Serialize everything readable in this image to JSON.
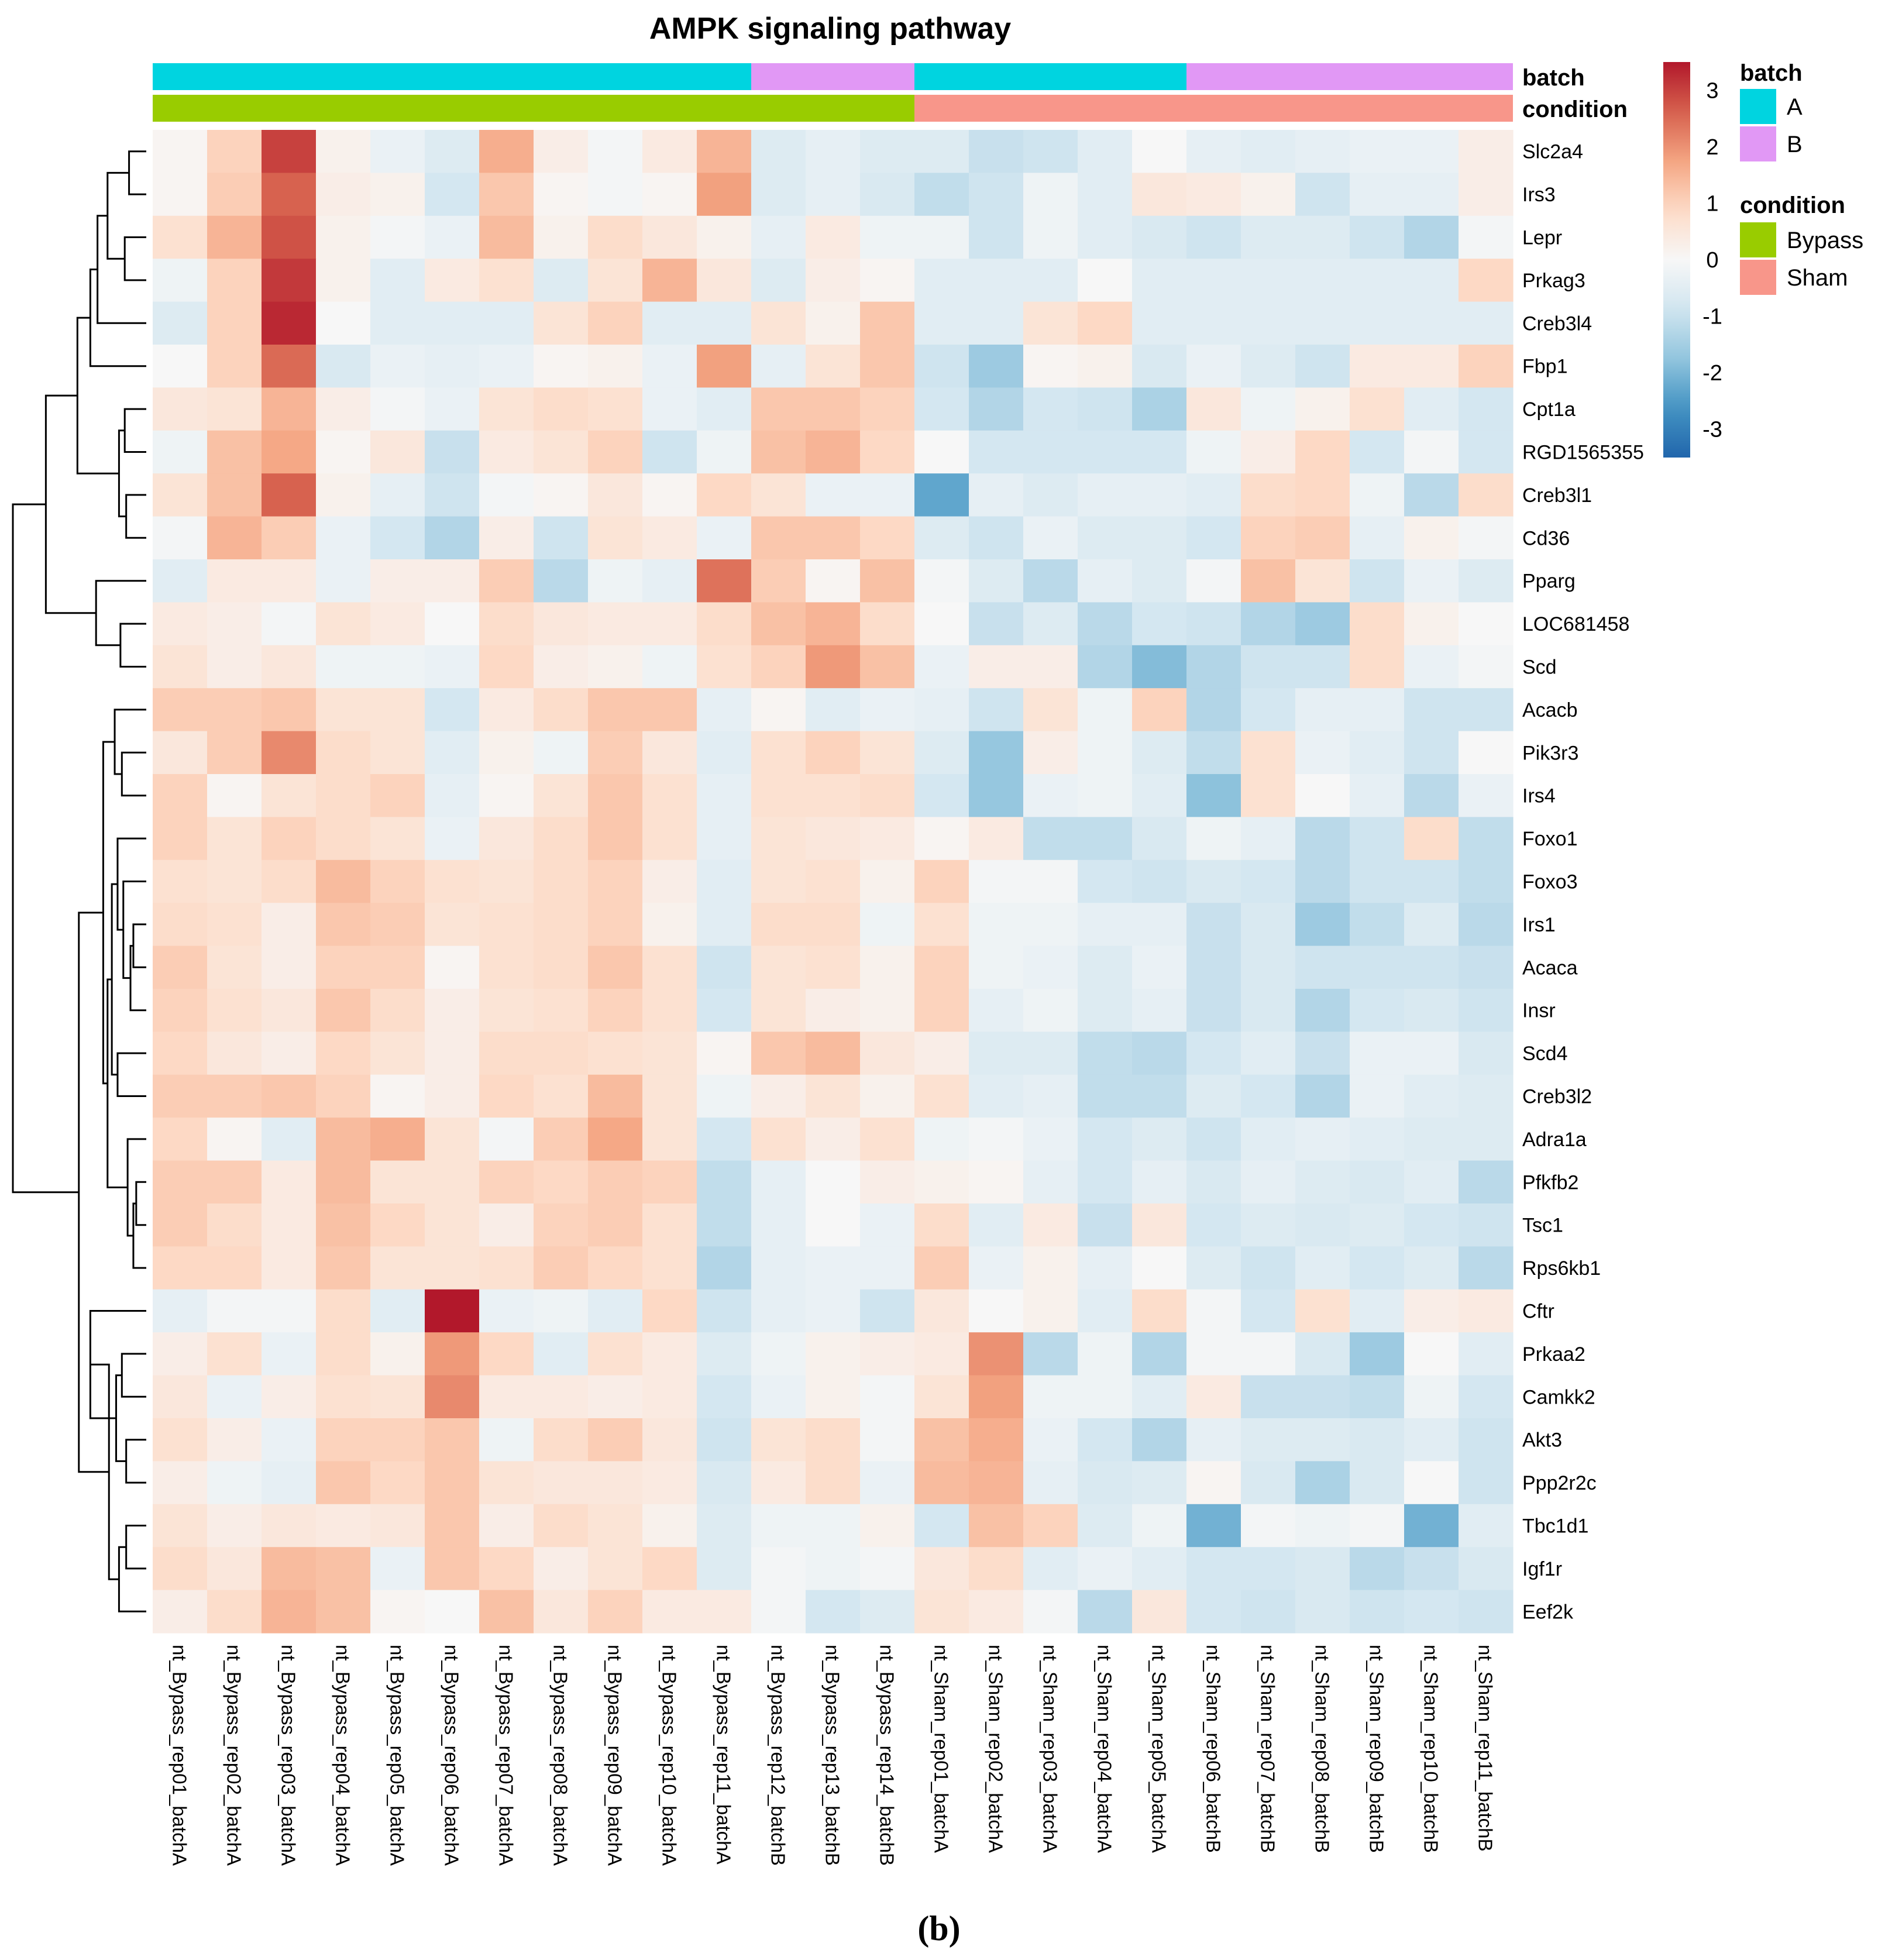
{
  "chart_data": {
    "type": "heatmap",
    "title": "AMPK signaling pathway",
    "panel_label": "(b)",
    "rows": [
      "Slc2a4",
      "Irs3",
      "Lepr",
      "Prkag3",
      "Creb3l4",
      "Fbp1",
      "Cpt1a",
      "RGD1565355",
      "Creb3l1",
      "Cd36",
      "Pparg",
      "LOC681458",
      "Scd",
      "Acacb",
      "Pik3r3",
      "Irs4",
      "Foxo1",
      "Foxo3",
      "Irs1",
      "Acaca",
      "Insr",
      "Scd4",
      "Creb3l2",
      "Adra1a",
      "Pfkfb2",
      "Tsc1",
      "Rps6kb1",
      "Cftr",
      "Prkaa2",
      "Camkk2",
      "Akt3",
      "Ppp2r2c",
      "Tbc1d1",
      "Igf1r",
      "Eef2k"
    ],
    "columns": [
      "nt_Bypass_rep01_batchA",
      "nt_Bypass_rep02_batchA",
      "nt_Bypass_rep03_batchA",
      "nt_Bypass_rep04_batchA",
      "nt_Bypass_rep05_batchA",
      "nt_Bypass_rep06_batchA",
      "nt_Bypass_rep07_batchA",
      "nt_Bypass_rep08_batchA",
      "nt_Bypass_rep09_batchA",
      "nt_Bypass_rep10_batchA",
      "nt_Bypass_rep11_batchA",
      "nt_Bypass_rep12_batchB",
      "nt_Bypass_rep13_batchB",
      "nt_Bypass_rep14_batchB",
      "nt_Sham_rep01_batchA",
      "nt_Sham_rep02_batchA",
      "nt_Sham_rep03_batchA",
      "nt_Sham_rep04_batchA",
      "nt_Sham_rep05_batchA",
      "nt_Sham_rep06_batchB",
      "nt_Sham_rep07_batchB",
      "nt_Sham_rep08_batchB",
      "nt_Sham_rep09_batchB",
      "nt_Sham_rep10_batchB",
      "nt_Sham_rep11_batchB"
    ],
    "values": [
      [
        0.1,
        1.0,
        3.0,
        0.2,
        -0.3,
        -0.6,
        1.6,
        0.3,
        -0.1,
        0.4,
        1.5,
        -0.6,
        -0.4,
        -0.6,
        -0.6,
        -1.0,
        -0.9,
        -0.5,
        0.0,
        -0.4,
        -0.5,
        -0.4,
        -0.3,
        -0.3,
        0.3
      ],
      [
        0.1,
        1.1,
        2.6,
        0.3,
        0.2,
        -0.8,
        1.2,
        0.1,
        -0.1,
        0.1,
        1.8,
        -0.6,
        -0.4,
        -0.7,
        -1.1,
        -0.9,
        -0.2,
        -0.5,
        0.5,
        0.4,
        0.2,
        -0.9,
        -0.4,
        -0.4,
        0.3
      ],
      [
        0.7,
        1.5,
        2.8,
        0.2,
        -0.1,
        -0.3,
        1.4,
        0.2,
        0.8,
        0.5,
        0.2,
        -0.4,
        0.4,
        -0.2,
        -0.2,
        -0.9,
        -0.2,
        -0.5,
        -0.7,
        -0.9,
        -0.6,
        -0.6,
        -0.9,
        -1.3,
        -0.1
      ],
      [
        -0.2,
        1.0,
        3.1,
        0.2,
        -0.5,
        0.4,
        0.7,
        -0.6,
        0.6,
        1.5,
        0.5,
        -0.6,
        0.3,
        0.1,
        -0.5,
        -0.5,
        -0.5,
        0.0,
        -0.5,
        -0.5,
        -0.5,
        -0.5,
        -0.5,
        -0.5,
        0.9
      ],
      [
        -0.6,
        1.0,
        3.3,
        0.0,
        -0.5,
        -0.5,
        -0.5,
        0.6,
        1.0,
        -0.5,
        -0.5,
        0.6,
        0.2,
        1.2,
        -0.5,
        -0.5,
        0.6,
        0.9,
        -0.5,
        -0.5,
        -0.5,
        -0.5,
        -0.5,
        -0.5,
        -0.5
      ],
      [
        0.0,
        1.0,
        2.5,
        -0.7,
        -0.3,
        -0.4,
        -0.3,
        0.1,
        0.2,
        -0.3,
        1.8,
        -0.4,
        0.6,
        1.2,
        -0.9,
        -1.6,
        0.1,
        0.2,
        -0.7,
        -0.3,
        -0.6,
        -0.9,
        0.4,
        0.4,
        1.0
      ],
      [
        0.5,
        0.6,
        1.5,
        0.3,
        -0.1,
        -0.3,
        0.6,
        0.8,
        0.7,
        -0.3,
        -0.5,
        1.2,
        1.2,
        1.0,
        -0.8,
        -1.3,
        -0.8,
        -0.9,
        -1.4,
        0.5,
        -0.2,
        0.2,
        0.7,
        -0.5,
        -0.8
      ],
      [
        -0.2,
        1.3,
        1.7,
        0.1,
        0.5,
        -1.0,
        0.4,
        0.6,
        1.0,
        -0.9,
        -0.2,
        1.3,
        1.5,
        0.9,
        0.0,
        -0.8,
        -0.8,
        -0.8,
        -0.8,
        -0.2,
        0.3,
        0.9,
        -0.8,
        -0.1,
        -0.8
      ],
      [
        0.6,
        1.3,
        2.6,
        0.2,
        -0.4,
        -0.9,
        -0.1,
        0.1,
        0.5,
        0.1,
        0.9,
        0.6,
        -0.3,
        -0.3,
        -2.3,
        -0.4,
        -0.6,
        -0.4,
        -0.4,
        -0.5,
        0.8,
        0.9,
        -0.2,
        -1.2,
        0.8
      ],
      [
        -0.1,
        1.5,
        1.1,
        -0.3,
        -0.8,
        -1.3,
        0.3,
        -0.9,
        0.6,
        0.4,
        -0.3,
        1.2,
        1.2,
        0.9,
        -0.6,
        -0.9,
        -0.3,
        -0.6,
        -0.6,
        -0.8,
        1.0,
        1.1,
        -0.4,
        0.2,
        -0.1
      ],
      [
        -0.5,
        0.4,
        0.4,
        -0.3,
        0.3,
        0.3,
        1.1,
        -1.2,
        -0.2,
        -0.4,
        2.4,
        1.1,
        0.1,
        1.3,
        -0.1,
        -0.6,
        -1.2,
        -0.4,
        -0.6,
        -0.1,
        1.3,
        0.6,
        -0.9,
        -0.3,
        -0.6
      ],
      [
        0.4,
        0.3,
        -0.1,
        0.6,
        0.4,
        0.0,
        0.8,
        0.5,
        0.4,
        0.4,
        0.8,
        1.3,
        1.5,
        0.8,
        0.0,
        -1.0,
        -0.6,
        -1.2,
        -0.8,
        -0.9,
        -1.3,
        -1.6,
        0.8,
        0.2,
        0.0
      ],
      [
        0.6,
        0.3,
        0.5,
        -0.2,
        -0.2,
        -0.3,
        0.9,
        0.3,
        0.2,
        -0.2,
        0.7,
        1.0,
        1.9,
        1.3,
        -0.3,
        0.3,
        0.3,
        -1.3,
        -1.9,
        -1.3,
        -0.9,
        -0.9,
        0.8,
        -0.3,
        -0.1
      ],
      [
        1.1,
        1.1,
        1.2,
        0.6,
        0.6,
        -0.8,
        0.4,
        0.8,
        1.2,
        1.2,
        -0.4,
        0.1,
        -0.5,
        -0.3,
        -0.4,
        -0.9,
        0.6,
        -0.2,
        1.0,
        -1.3,
        -0.8,
        -0.4,
        -0.4,
        -0.9,
        -0.9
      ],
      [
        0.5,
        1.1,
        2.1,
        0.8,
        0.6,
        -0.5,
        0.2,
        -0.2,
        1.1,
        0.5,
        -0.5,
        0.7,
        1.0,
        0.6,
        -0.6,
        -1.7,
        0.3,
        -0.2,
        -0.6,
        -1.1,
        0.7,
        -0.3,
        -0.5,
        -0.9,
        0.0
      ],
      [
        1.0,
        0.1,
        0.6,
        0.8,
        1.0,
        -0.4,
        0.1,
        0.6,
        1.2,
        0.7,
        -0.4,
        0.7,
        0.7,
        0.8,
        -0.8,
        -1.7,
        -0.3,
        -0.2,
        -0.5,
        -1.8,
        0.7,
        0.0,
        -0.4,
        -1.2,
        -0.3
      ],
      [
        1.0,
        0.6,
        1.0,
        0.8,
        0.6,
        -0.3,
        0.5,
        0.8,
        1.2,
        0.7,
        -0.4,
        0.6,
        0.5,
        0.4,
        0.1,
        0.4,
        -1.1,
        -1.1,
        -0.7,
        -0.2,
        -0.4,
        -1.2,
        -0.9,
        0.8,
        -1.1
      ],
      [
        0.7,
        0.6,
        0.8,
        1.4,
        1.0,
        0.7,
        0.6,
        0.8,
        1.0,
        0.3,
        -0.5,
        0.6,
        0.7,
        0.2,
        1.0,
        -0.1,
        -0.1,
        -0.8,
        -0.9,
        -0.7,
        -0.8,
        -1.2,
        -0.9,
        -0.9,
        -1.1
      ],
      [
        0.8,
        0.7,
        0.3,
        1.2,
        1.1,
        0.6,
        0.7,
        0.8,
        1.0,
        0.2,
        -0.5,
        0.8,
        0.8,
        -0.2,
        0.7,
        -0.2,
        -0.2,
        -0.4,
        -0.4,
        -1.0,
        -0.7,
        -1.6,
        -1.1,
        -0.6,
        -1.2
      ],
      [
        1.1,
        0.6,
        0.3,
        1.0,
        1.0,
        0.1,
        0.7,
        0.8,
        1.2,
        0.7,
        -0.9,
        0.6,
        0.7,
        0.2,
        1.0,
        -0.2,
        -0.3,
        -0.6,
        -0.3,
        -1.0,
        -0.7,
        -0.9,
        -0.9,
        -0.9,
        -1.0
      ],
      [
        1.0,
        0.7,
        0.5,
        1.2,
        0.8,
        0.3,
        0.6,
        0.7,
        1.0,
        0.7,
        -0.8,
        0.6,
        0.3,
        0.2,
        1.0,
        -0.4,
        -0.2,
        -0.6,
        -0.4,
        -1.0,
        -0.7,
        -1.3,
        -0.8,
        -0.7,
        -0.9
      ],
      [
        0.9,
        0.5,
        0.3,
        0.9,
        0.6,
        0.3,
        0.8,
        0.8,
        0.7,
        0.6,
        0.1,
        1.2,
        1.4,
        0.5,
        0.3,
        -0.6,
        -0.6,
        -1.1,
        -1.2,
        -0.8,
        -0.5,
        -1.0,
        -0.3,
        -0.3,
        -0.7
      ],
      [
        1.1,
        1.1,
        1.2,
        1.0,
        0.1,
        0.3,
        0.9,
        0.7,
        1.4,
        0.6,
        -0.2,
        0.3,
        0.6,
        0.2,
        0.7,
        -0.5,
        -0.4,
        -1.1,
        -1.1,
        -0.6,
        -0.8,
        -1.3,
        -0.3,
        -0.5,
        -0.6
      ],
      [
        0.9,
        0.1,
        -0.5,
        1.4,
        1.6,
        0.6,
        -0.1,
        1.1,
        1.7,
        0.6,
        -0.8,
        0.7,
        0.3,
        0.7,
        -0.2,
        -0.1,
        -0.3,
        -0.8,
        -0.6,
        -0.9,
        -0.5,
        -0.4,
        -0.5,
        -0.6,
        -0.6
      ],
      [
        1.1,
        1.1,
        0.4,
        1.4,
        0.6,
        0.6,
        1.0,
        0.9,
        1.1,
        1.0,
        -1.1,
        -0.4,
        0.0,
        0.3,
        0.2,
        0.1,
        -0.4,
        -0.8,
        -0.4,
        -0.7,
        -0.4,
        -0.6,
        -0.7,
        -0.5,
        -1.2
      ],
      [
        1.1,
        0.8,
        0.4,
        1.3,
        0.9,
        0.6,
        0.3,
        1.0,
        1.1,
        0.7,
        -1.1,
        -0.4,
        0.0,
        -0.3,
        0.8,
        -0.5,
        0.4,
        -1.0,
        0.5,
        -0.8,
        -0.6,
        -0.7,
        -0.6,
        -0.8,
        -0.9
      ],
      [
        0.9,
        0.9,
        0.4,
        1.2,
        0.6,
        0.6,
        0.7,
        1.1,
        0.9,
        0.7,
        -1.3,
        -0.4,
        -0.3,
        -0.3,
        1.1,
        -0.3,
        0.2,
        -0.4,
        0.0,
        -0.6,
        -0.9,
        -0.5,
        -0.8,
        -0.6,
        -1.2
      ],
      [
        -0.4,
        -0.1,
        -0.1,
        0.8,
        -0.5,
        3.5,
        -0.3,
        -0.2,
        -0.5,
        0.9,
        -0.9,
        -0.4,
        -0.3,
        -0.9,
        0.5,
        0.0,
        0.2,
        -0.5,
        0.8,
        -0.1,
        -0.8,
        0.7,
        -0.5,
        0.3,
        0.4
      ],
      [
        0.3,
        0.7,
        -0.3,
        0.8,
        0.2,
        1.9,
        0.9,
        -0.5,
        0.7,
        0.4,
        -0.6,
        -0.2,
        0.2,
        0.3,
        0.4,
        2.0,
        -1.2,
        -0.2,
        -1.3,
        -0.1,
        -0.1,
        -0.7,
        -1.6,
        0.0,
        -0.5
      ],
      [
        0.5,
        -0.3,
        0.3,
        0.7,
        0.6,
        2.1,
        0.4,
        0.4,
        0.3,
        0.4,
        -0.8,
        -0.3,
        0.2,
        -0.1,
        0.6,
        1.8,
        -0.2,
        -0.2,
        -0.5,
        0.4,
        -1.0,
        -1.0,
        -1.1,
        -0.2,
        -0.8
      ],
      [
        0.7,
        0.3,
        -0.3,
        1.0,
        1.0,
        1.2,
        -0.2,
        0.8,
        1.1,
        0.5,
        -0.9,
        0.6,
        0.8,
        -0.1,
        1.3,
        1.6,
        -0.3,
        -0.8,
        -1.3,
        -0.4,
        -0.6,
        -0.6,
        -0.7,
        -0.5,
        -0.9
      ],
      [
        0.3,
        -0.2,
        -0.4,
        1.2,
        0.9,
        1.2,
        0.6,
        0.5,
        0.5,
        0.4,
        -0.7,
        0.4,
        0.8,
        -0.3,
        1.4,
        1.5,
        -0.4,
        -0.7,
        -0.6,
        0.1,
        -0.7,
        -1.4,
        -0.7,
        0.0,
        -0.9
      ],
      [
        0.6,
        0.3,
        0.5,
        0.4,
        0.5,
        1.2,
        0.3,
        0.8,
        0.6,
        0.2,
        -0.6,
        -0.2,
        -0.2,
        0.2,
        -0.8,
        1.3,
        1.0,
        -0.6,
        -0.2,
        -2.1,
        -0.1,
        -0.2,
        -0.1,
        -2.1,
        -0.5
      ],
      [
        0.8,
        0.5,
        1.4,
        1.3,
        -0.3,
        1.2,
        0.9,
        0.3,
        0.6,
        0.9,
        -0.6,
        -0.1,
        -0.2,
        -0.1,
        0.5,
        0.8,
        -0.5,
        -0.3,
        -0.5,
        -0.8,
        -0.8,
        -0.7,
        -1.2,
        -1.0,
        -0.7
      ],
      [
        0.3,
        0.8,
        1.5,
        1.3,
        0.1,
        0.0,
        1.3,
        0.5,
        1.0,
        0.4,
        0.4,
        -0.1,
        -0.8,
        -0.6,
        0.6,
        0.4,
        -0.1,
        -1.2,
        0.5,
        -0.8,
        -0.9,
        -0.7,
        -0.9,
        -0.8,
        -0.9
      ]
    ],
    "batch": [
      "A",
      "A",
      "A",
      "A",
      "A",
      "A",
      "A",
      "A",
      "A",
      "A",
      "A",
      "B",
      "B",
      "B",
      "A",
      "A",
      "A",
      "A",
      "A",
      "B",
      "B",
      "B",
      "B",
      "B",
      "B"
    ],
    "condition": [
      "Bypass",
      "Bypass",
      "Bypass",
      "Bypass",
      "Bypass",
      "Bypass",
      "Bypass",
      "Bypass",
      "Bypass",
      "Bypass",
      "Bypass",
      "Bypass",
      "Bypass",
      "Bypass",
      "Sham",
      "Sham",
      "Sham",
      "Sham",
      "Sham",
      "Sham",
      "Sham",
      "Sham",
      "Sham",
      "Sham",
      "Sham"
    ],
    "annotation_row_labels": [
      "batch",
      "condition"
    ],
    "color_scale": {
      "range": [
        -3.5,
        3.5
      ],
      "ticks": [
        "3",
        "2",
        "1",
        "0",
        "-1",
        "-2",
        "-3"
      ],
      "tick_values": [
        3,
        2,
        1,
        0,
        -1,
        -2,
        -3
      ],
      "low": "#2166ac",
      "mid": "#f7f7f7",
      "high": "#b2182b"
    },
    "legend": {
      "batch_title": "batch",
      "batch_items": [
        {
          "label": "A",
          "color": "#00d4e0"
        },
        {
          "label": "B",
          "color": "#e198f5"
        }
      ],
      "condition_title": "condition",
      "condition_items": [
        {
          "label": "Bypass",
          "color": "#99cc00"
        },
        {
          "label": "Sham",
          "color": "#f8968a"
        }
      ]
    },
    "row_dendrogram": [
      [
        0,
        1,
        0.12
      ],
      [
        2,
        3,
        0.15
      ],
      [
        35,
        36,
        0.27
      ],
      [
        37,
        4,
        0.34
      ],
      [
        38,
        5,
        0.39
      ],
      [
        6,
        7,
        0.15
      ],
      [
        8,
        9,
        0.14
      ],
      [
        40,
        41,
        0.19
      ],
      [
        39,
        42,
        0.48
      ],
      [
        11,
        12,
        0.18
      ],
      [
        10,
        44,
        0.35
      ],
      [
        43,
        45,
        0.7
      ],
      [
        14,
        15,
        0.17
      ],
      [
        13,
        47,
        0.22
      ],
      [
        18,
        19,
        0.09
      ],
      [
        20,
        49,
        0.11
      ],
      [
        17,
        50,
        0.16
      ],
      [
        16,
        51,
        0.2
      ],
      [
        21,
        22,
        0.2
      ],
      [
        52,
        53,
        0.24
      ],
      [
        24,
        25,
        0.07
      ],
      [
        26,
        55,
        0.09
      ],
      [
        23,
        56,
        0.13
      ],
      [
        54,
        57,
        0.27
      ],
      [
        48,
        58,
        0.3
      ],
      [
        28,
        29,
        0.17
      ],
      [
        30,
        31,
        0.14
      ],
      [
        60,
        61,
        0.21
      ],
      [
        27,
        62,
        0.39
      ],
      [
        32,
        33,
        0.14
      ],
      [
        64,
        34,
        0.19
      ],
      [
        63,
        65,
        0.26
      ],
      [
        59,
        66,
        0.47
      ],
      [
        46,
        67,
        0.93
      ]
    ]
  }
}
